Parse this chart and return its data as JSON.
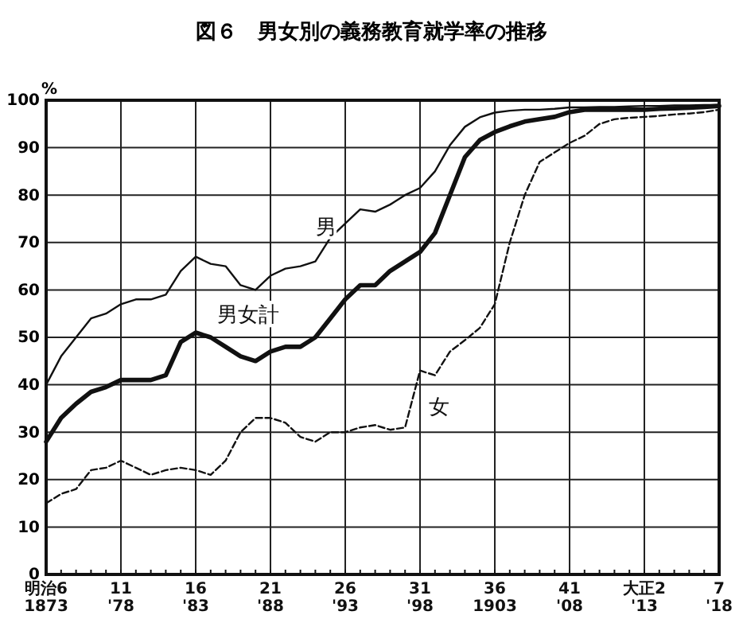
{
  "chart_data": {
    "type": "line",
    "title": "図６　男女別の義務教育就学率の推移",
    "ylabel": "%",
    "categories": [
      "明治6\n1873",
      null,
      null,
      null,
      null,
      "11\n'78",
      null,
      null,
      null,
      null,
      "16\n'83",
      null,
      null,
      null,
      null,
      "21\n'88",
      null,
      null,
      null,
      null,
      "26\n'93",
      null,
      null,
      null,
      null,
      "31\n'98",
      null,
      null,
      null,
      null,
      "36\n1903",
      null,
      null,
      null,
      null,
      "41\n'08",
      null,
      null,
      null,
      null,
      "大正2\n'13",
      null,
      null,
      null,
      null,
      "7\n'18"
    ],
    "series": [
      {
        "name": "男",
        "color": "#111111",
        "line_style": "solid",
        "values": [
          40,
          46,
          50,
          54,
          55,
          57,
          58,
          58,
          59,
          64,
          67,
          65.5,
          65,
          61,
          60,
          63,
          64.5,
          65,
          66,
          71,
          74,
          77,
          76.5,
          78,
          80,
          81.5,
          85,
          90.5,
          94.4,
          96.4,
          97.4,
          97.8,
          98,
          98,
          98.2,
          98.5,
          98.5,
          98.6,
          98.6,
          98.7,
          98.8,
          98.8,
          98.9,
          98.9,
          99,
          99
        ]
      },
      {
        "name": "男女計",
        "color": "#111111",
        "line_style": "solid",
        "values": [
          28,
          33,
          36,
          38.5,
          39.5,
          41,
          41,
          41,
          42,
          49,
          51,
          50,
          48,
          46,
          45,
          47,
          48,
          48,
          50,
          54,
          58,
          61,
          61,
          64,
          66,
          68,
          72,
          80,
          88,
          91.6,
          93.3,
          94.5,
          95.5,
          96,
          96.5,
          97.5,
          98,
          98,
          98,
          98,
          98,
          98.2,
          98.3,
          98.4,
          98.6,
          98.8
        ]
      },
      {
        "name": "女",
        "color": "#111111",
        "line_style": "dashed",
        "values": [
          15,
          17,
          18,
          22,
          22.5,
          24,
          22.5,
          21,
          22,
          22.5,
          22,
          21,
          24,
          30,
          33,
          33,
          32,
          29,
          28,
          30,
          30,
          31,
          31.5,
          30.5,
          31,
          43,
          42,
          47,
          49.4,
          52,
          57,
          70,
          80,
          87,
          89,
          91,
          92.5,
          95,
          96,
          96.3,
          96.5,
          96.7,
          97,
          97.2,
          97.5,
          98
        ]
      }
    ],
    "ylim": [
      0,
      100
    ],
    "yticks": [
      0,
      10,
      20,
      30,
      40,
      50,
      60,
      70,
      80,
      90,
      100
    ],
    "grid": true,
    "marker": "none"
  }
}
